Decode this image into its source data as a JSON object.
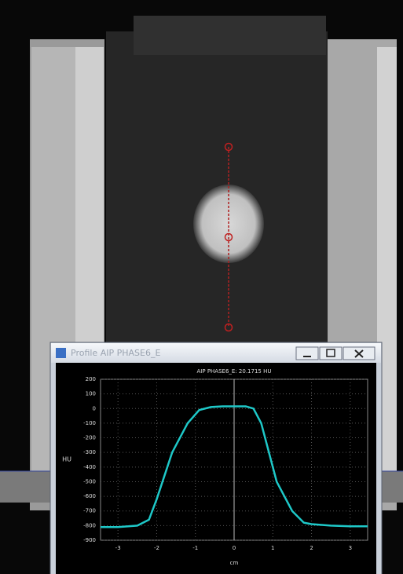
{
  "window": {
    "title": "Profile AIP PHASE6_E"
  },
  "chart_data": {
    "type": "line",
    "title": "AIP PHASE6_E:  20.1715 HU",
    "x_label": "cm",
    "y_label": "HU",
    "x": [
      -3.45,
      -3,
      -2.5,
      -2.2,
      -2,
      -1.6,
      -1.2,
      -0.9,
      -0.6,
      -0.3,
      0,
      0.3,
      0.5,
      0.7,
      1.1,
      1.5,
      1.8,
      2,
      2.5,
      3,
      3.45
    ],
    "values": [
      -810,
      -810,
      -800,
      -760,
      -620,
      -300,
      -100,
      -10,
      10,
      15,
      15,
      15,
      0,
      -100,
      -500,
      -700,
      -780,
      -790,
      -800,
      -805,
      -805
    ],
    "color": "#1ec8c8",
    "xlim": [
      -3.45,
      3.45
    ],
    "xticks": [
      -3,
      -2,
      -1,
      0,
      1,
      2,
      3
    ],
    "ylim": [
      -900,
      200
    ],
    "yticks": [
      200,
      100,
      0,
      -100,
      -200,
      -300,
      -400,
      -500,
      -600,
      -700,
      -800,
      -900
    ],
    "grid": true
  }
}
